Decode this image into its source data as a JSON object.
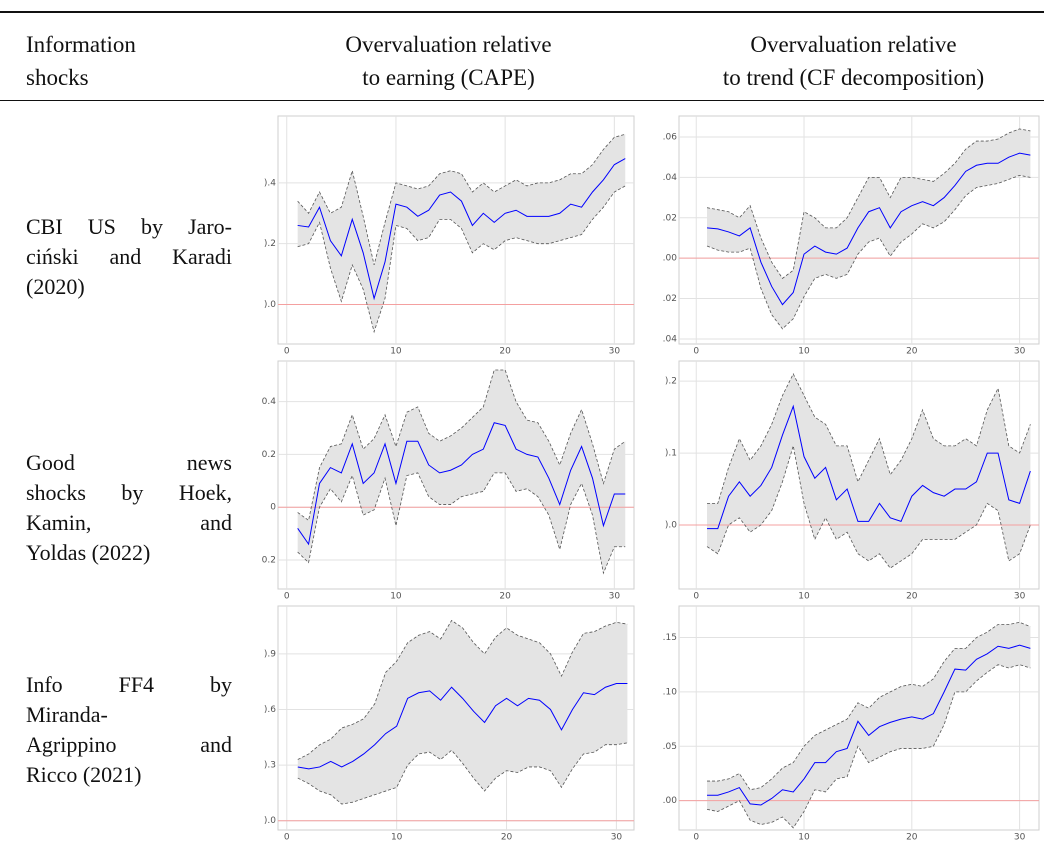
{
  "table": {
    "header": [
      [
        "Information",
        "shocks"
      ],
      [
        "Overvaluation relative",
        "to earning (CAPE)"
      ],
      [
        "Overvaluation relative",
        "to trend (CF decomposition)"
      ]
    ],
    "rows": [
      [
        "CBI US by Jaro-",
        "ciński and Karadi",
        "(2020)"
      ],
      [
        "Good news",
        "shocks by Hoek,",
        "Kamin, and",
        "Yoldas (2022)"
      ],
      [
        "Info FF4 by",
        "Miranda-",
        "Agrippino and",
        "Ricco (2021)"
      ]
    ]
  },
  "chart_data": [
    {
      "type": "line",
      "x": [
        1,
        2,
        3,
        4,
        5,
        6,
        7,
        8,
        9,
        10,
        11,
        12,
        13,
        14,
        15,
        16,
        17,
        18,
        19,
        20,
        21,
        22,
        23,
        24,
        25,
        26,
        27,
        28,
        29,
        30,
        31
      ],
      "series": [
        {
          "color": "#0000ff",
          "values": [
            0.26,
            0.255,
            0.32,
            0.21,
            0.16,
            0.28,
            0.17,
            0.02,
            0.14,
            0.33,
            0.32,
            0.29,
            0.31,
            0.36,
            0.37,
            0.34,
            0.26,
            0.3,
            0.27,
            0.3,
            0.31,
            0.29,
            0.29,
            0.29,
            0.3,
            0.33,
            0.32,
            0.37,
            0.41,
            0.46,
            0.48
          ]
        },
        {
          "color": "#555555",
          "dash": true,
          "values": [
            0.34,
            0.3,
            0.37,
            0.3,
            0.32,
            0.44,
            0.29,
            0.13,
            0.27,
            0.4,
            0.39,
            0.38,
            0.39,
            0.43,
            0.44,
            0.43,
            0.37,
            0.4,
            0.37,
            0.39,
            0.41,
            0.39,
            0.4,
            0.4,
            0.41,
            0.43,
            0.43,
            0.46,
            0.51,
            0.55,
            0.56
          ]
        },
        {
          "color": "#555555",
          "dash": true,
          "values": [
            0.19,
            0.2,
            0.27,
            0.12,
            0.01,
            0.13,
            0.05,
            -0.09,
            0.02,
            0.26,
            0.25,
            0.21,
            0.22,
            0.28,
            0.28,
            0.25,
            0.17,
            0.2,
            0.18,
            0.21,
            0.22,
            0.21,
            0.2,
            0.2,
            0.21,
            0.22,
            0.23,
            0.28,
            0.32,
            0.37,
            0.39
          ]
        }
      ],
      "band_fill": "#e4e4e4",
      "hline": {
        "value": 0,
        "color": "#f4a0a0"
      },
      "grid": true,
      "xlim": [
        -0.8,
        31.8
      ],
      "xticks": [
        0,
        10,
        20,
        30
      ],
      "ylim": [
        -0.13,
        0.62
      ],
      "yticks": [
        {
          "value": 0,
          "label": ").0"
        },
        {
          "value": 0.2,
          "label": ").2"
        },
        {
          "value": 0.4,
          "label": ").4"
        }
      ]
    },
    {
      "type": "line",
      "x": [
        1,
        2,
        3,
        4,
        5,
        6,
        7,
        8,
        9,
        10,
        11,
        12,
        13,
        14,
        15,
        16,
        17,
        18,
        19,
        20,
        21,
        22,
        23,
        24,
        25,
        26,
        27,
        28,
        29,
        30,
        31
      ],
      "series": [
        {
          "color": "#0000ff",
          "values": [
            0.015,
            0.0145,
            0.013,
            0.011,
            0.015,
            -0.002,
            -0.014,
            -0.023,
            -0.017,
            0.002,
            0.006,
            0.003,
            0.002,
            0.005,
            0.015,
            0.023,
            0.025,
            0.015,
            0.023,
            0.026,
            0.028,
            0.026,
            0.03,
            0.036,
            0.043,
            0.046,
            0.047,
            0.047,
            0.05,
            0.052,
            0.051
          ]
        },
        {
          "color": "#555555",
          "dash": true,
          "values": [
            0.025,
            0.024,
            0.023,
            0.02,
            0.026,
            0.01,
            -0.002,
            -0.01,
            -0.006,
            0.023,
            0.02,
            0.015,
            0.015,
            0.02,
            0.03,
            0.04,
            0.04,
            0.03,
            0.04,
            0.04,
            0.039,
            0.038,
            0.042,
            0.047,
            0.054,
            0.058,
            0.058,
            0.059,
            0.062,
            0.064,
            0.063
          ]
        },
        {
          "color": "#555555",
          "dash": true,
          "values": [
            0.006,
            0.004,
            0.003,
            0.003,
            0.005,
            -0.015,
            -0.028,
            -0.035,
            -0.03,
            -0.019,
            -0.01,
            -0.008,
            -0.01,
            -0.008,
            0.002,
            0.008,
            0.01,
            0.001,
            0.008,
            0.012,
            0.017,
            0.015,
            0.018,
            0.024,
            0.031,
            0.035,
            0.036,
            0.037,
            0.039,
            0.041,
            0.04
          ]
        }
      ],
      "band_fill": "#e4e4e4",
      "hline": {
        "value": 0,
        "color": "#f4a0a0"
      },
      "grid": true,
      "xlim": [
        -1.6,
        31.8
      ],
      "xticks": [
        0,
        10,
        20,
        30
      ],
      "ylim": [
        -0.0425,
        0.0704
      ],
      "yticks": [
        {
          "value": -0.04,
          "label": "0.04"
        },
        {
          "value": -0.02,
          "label": "0.02"
        },
        {
          "value": 0,
          "label": "0.00"
        },
        {
          "value": 0.02,
          "label": "0.02"
        },
        {
          "value": 0.04,
          "label": "0.04"
        },
        {
          "value": 0.06,
          "label": "0.06"
        }
      ]
    },
    {
      "type": "line",
      "x": [
        1,
        2,
        3,
        4,
        5,
        6,
        7,
        8,
        9,
        10,
        11,
        12,
        13,
        14,
        15,
        16,
        17,
        18,
        19,
        20,
        21,
        22,
        23,
        24,
        25,
        26,
        27,
        28,
        29,
        30,
        31
      ],
      "series": [
        {
          "color": "#0000ff",
          "values": [
            -0.08,
            -0.14,
            0.09,
            0.15,
            0.13,
            0.24,
            0.09,
            0.13,
            0.24,
            0.09,
            0.25,
            0.25,
            0.16,
            0.13,
            0.14,
            0.16,
            0.2,
            0.22,
            0.32,
            0.31,
            0.22,
            0.2,
            0.19,
            0.11,
            0.01,
            0.14,
            0.23,
            0.11,
            -0.07,
            0.05,
            0.05
          ]
        },
        {
          "color": "#555555",
          "dash": true,
          "values": [
            -0.02,
            -0.05,
            0.15,
            0.23,
            0.24,
            0.35,
            0.22,
            0.26,
            0.35,
            0.23,
            0.36,
            0.38,
            0.28,
            0.25,
            0.27,
            0.3,
            0.34,
            0.38,
            0.52,
            0.52,
            0.4,
            0.33,
            0.32,
            0.25,
            0.16,
            0.28,
            0.37,
            0.24,
            0.09,
            0.22,
            0.25
          ]
        },
        {
          "color": "#555555",
          "dash": true,
          "values": [
            -0.17,
            -0.21,
            0.0,
            0.07,
            0.02,
            0.12,
            -0.03,
            -0.01,
            0.11,
            -0.07,
            0.12,
            0.13,
            0.04,
            0.01,
            0.01,
            0.04,
            0.05,
            0.06,
            0.13,
            0.13,
            0.06,
            0.07,
            0.04,
            -0.03,
            -0.16,
            0.01,
            0.09,
            -0.03,
            -0.25,
            -0.15,
            -0.15
          ]
        }
      ],
      "band_fill": "#e4e4e4",
      "hline": {
        "value": 0,
        "color": "#f4a0a0"
      },
      "grid": true,
      "xlim": [
        -0.8,
        31.8
      ],
      "xticks": [
        0,
        10,
        20,
        30
      ],
      "ylim": [
        -0.31,
        0.554
      ],
      "yticks": [
        {
          "value": -0.2,
          "label": "0.2"
        },
        0.0,
        0.2,
        0.4
      ]
    },
    {
      "type": "line",
      "x": [
        1,
        2,
        3,
        4,
        5,
        6,
        7,
        8,
        9,
        10,
        11,
        12,
        13,
        14,
        15,
        16,
        17,
        18,
        19,
        20,
        21,
        22,
        23,
        24,
        25,
        26,
        27,
        28,
        29,
        30,
        31
      ],
      "series": [
        {
          "color": "#0000ff",
          "values": [
            -0.005,
            -0.005,
            0.04,
            0.06,
            0.04,
            0.055,
            0.08,
            0.125,
            0.165,
            0.095,
            0.065,
            0.08,
            0.035,
            0.05,
            0.005,
            0.005,
            0.03,
            0.01,
            0.005,
            0.04,
            0.055,
            0.045,
            0.04,
            0.05,
            0.05,
            0.06,
            0.1,
            0.1,
            0.035,
            0.03,
            0.075
          ]
        },
        {
          "color": "#555555",
          "dash": true,
          "values": [
            0.03,
            0.03,
            0.08,
            0.12,
            0.09,
            0.11,
            0.14,
            0.18,
            0.21,
            0.18,
            0.15,
            0.14,
            0.11,
            0.11,
            0.06,
            0.09,
            0.12,
            0.07,
            0.09,
            0.12,
            0.16,
            0.12,
            0.11,
            0.11,
            0.12,
            0.11,
            0.16,
            0.19,
            0.11,
            0.1,
            0.14
          ]
        },
        {
          "color": "#555555",
          "dash": true,
          "values": [
            -0.03,
            -0.04,
            0.0,
            0.01,
            -0.01,
            0.0,
            0.02,
            0.06,
            0.11,
            0.03,
            -0.02,
            0.01,
            -0.02,
            -0.01,
            -0.04,
            -0.05,
            -0.04,
            -0.06,
            -0.05,
            -0.04,
            -0.02,
            -0.02,
            -0.02,
            -0.02,
            -0.01,
            0.0,
            0.03,
            0.02,
            -0.05,
            -0.04,
            0.0
          ]
        }
      ],
      "band_fill": "#e4e4e4",
      "hline": {
        "value": 0,
        "color": "#f4a0a0"
      },
      "grid": true,
      "xlim": [
        -1.6,
        31.8
      ],
      "xticks": [
        0,
        10,
        20,
        30
      ],
      "ylim": [
        -0.089,
        0.228
      ],
      "yticks": [
        {
          "value": 0,
          "label": ").0"
        },
        {
          "value": 0.1,
          "label": ").1"
        },
        {
          "value": 0.2,
          "label": ").2"
        }
      ]
    },
    {
      "type": "line",
      "x": [
        1,
        2,
        3,
        4,
        5,
        6,
        7,
        8,
        9,
        10,
        11,
        12,
        13,
        14,
        15,
        16,
        17,
        18,
        19,
        20,
        21,
        22,
        23,
        24,
        25,
        26,
        27,
        28,
        29,
        30,
        31
      ],
      "series": [
        {
          "color": "#0000ff",
          "values": [
            0.29,
            0.28,
            0.29,
            0.32,
            0.29,
            0.32,
            0.36,
            0.41,
            0.47,
            0.51,
            0.66,
            0.69,
            0.7,
            0.65,
            0.72,
            0.66,
            0.59,
            0.53,
            0.62,
            0.66,
            0.62,
            0.66,
            0.65,
            0.6,
            0.49,
            0.6,
            0.69,
            0.68,
            0.72,
            0.74,
            0.74
          ]
        },
        {
          "color": "#555555",
          "dash": true,
          "values": [
            0.33,
            0.36,
            0.41,
            0.44,
            0.5,
            0.52,
            0.55,
            0.63,
            0.8,
            0.86,
            0.96,
            1.0,
            1.02,
            0.98,
            1.08,
            1.04,
            0.96,
            0.9,
            0.99,
            1.04,
            1.0,
            0.98,
            0.96,
            0.9,
            0.78,
            0.91,
            1.01,
            1.02,
            1.05,
            1.07,
            1.06
          ]
        },
        {
          "color": "#555555",
          "dash": true,
          "values": [
            0.23,
            0.2,
            0.16,
            0.14,
            0.09,
            0.1,
            0.12,
            0.14,
            0.16,
            0.18,
            0.3,
            0.36,
            0.37,
            0.33,
            0.38,
            0.31,
            0.23,
            0.16,
            0.23,
            0.27,
            0.26,
            0.29,
            0.29,
            0.27,
            0.18,
            0.28,
            0.36,
            0.37,
            0.41,
            0.41,
            0.42
          ]
        }
      ],
      "band_fill": "#e4e4e4",
      "hline": {
        "value": 0,
        "color": "#f4a0a0"
      },
      "grid": true,
      "xlim": [
        -0.8,
        31.6
      ],
      "xticks": [
        0,
        10,
        20,
        30
      ],
      "ylim": [
        -0.05,
        1.158
      ],
      "yticks": [
        {
          "value": 0,
          "label": ").0"
        },
        {
          "value": 0.3,
          "label": ").3"
        },
        {
          "value": 0.6,
          "label": ").6"
        },
        {
          "value": 0.9,
          "label": ").9"
        }
      ]
    },
    {
      "type": "line",
      "x": [
        1,
        2,
        3,
        4,
        5,
        6,
        7,
        8,
        9,
        10,
        11,
        12,
        13,
        14,
        15,
        16,
        17,
        18,
        19,
        20,
        21,
        22,
        23,
        24,
        25,
        26,
        27,
        28,
        29,
        30,
        31
      ],
      "series": [
        {
          "color": "#0000ff",
          "values": [
            0.005,
            0.005,
            0.008,
            0.012,
            -0.003,
            -0.004,
            0.002,
            0.01,
            0.008,
            0.02,
            0.035,
            0.035,
            0.045,
            0.048,
            0.073,
            0.06,
            0.068,
            0.072,
            0.075,
            0.077,
            0.075,
            0.08,
            0.1,
            0.121,
            0.12,
            0.13,
            0.135,
            0.142,
            0.14,
            0.143,
            0.14
          ]
        },
        {
          "color": "#555555",
          "dash": true,
          "values": [
            0.018,
            0.018,
            0.02,
            0.025,
            0.01,
            0.012,
            0.02,
            0.03,
            0.035,
            0.05,
            0.06,
            0.065,
            0.07,
            0.075,
            0.09,
            0.085,
            0.095,
            0.1,
            0.105,
            0.107,
            0.105,
            0.112,
            0.128,
            0.14,
            0.14,
            0.15,
            0.155,
            0.162,
            0.162,
            0.164,
            0.16
          ]
        },
        {
          "color": "#555555",
          "dash": true,
          "values": [
            -0.008,
            -0.01,
            -0.005,
            0.0,
            -0.018,
            -0.022,
            -0.02,
            -0.015,
            -0.025,
            -0.01,
            0.01,
            0.008,
            0.02,
            0.022,
            0.05,
            0.035,
            0.04,
            0.045,
            0.048,
            0.048,
            0.048,
            0.05,
            0.07,
            0.1,
            0.1,
            0.11,
            0.118,
            0.125,
            0.122,
            0.125,
            0.122
          ]
        }
      ],
      "band_fill": "#e4e4e4",
      "hline": {
        "value": 0,
        "color": "#f4a0a0"
      },
      "grid": true,
      "xlim": [
        -1.6,
        31.8
      ],
      "xticks": [
        0,
        10,
        20,
        30
      ],
      "ylim": [
        -0.027,
        0.179
      ],
      "yticks": [
        {
          "value": 0,
          "label": ").00"
        },
        {
          "value": 0.05,
          "label": ").05"
        },
        {
          "value": 0.1,
          "label": ").10"
        },
        {
          "value": 0.15,
          "label": ").15"
        }
      ]
    }
  ]
}
